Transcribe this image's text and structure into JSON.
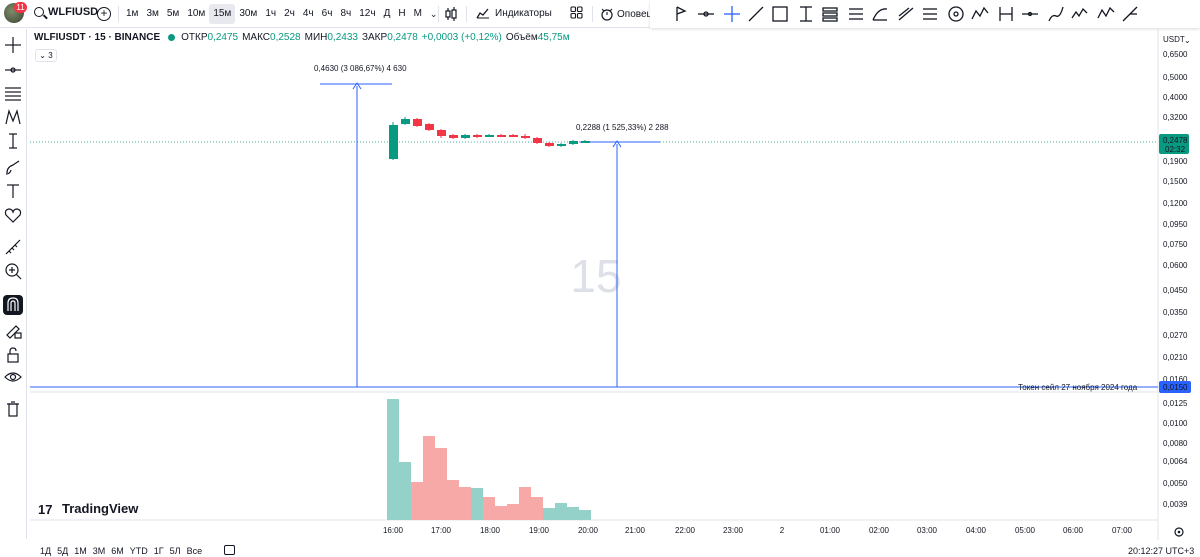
{
  "topbar": {
    "notification_count": "11",
    "symbol": "WLFIUSD",
    "add_symbol": "+",
    "intervals": [
      {
        "label": "1м",
        "active": false
      },
      {
        "label": "3м",
        "active": false
      },
      {
        "label": "5м",
        "active": false
      },
      {
        "label": "10м",
        "active": false
      },
      {
        "label": "15м",
        "active": true
      },
      {
        "label": "30м",
        "active": false
      },
      {
        "label": "1ч",
        "active": false
      },
      {
        "label": "2ч",
        "active": false
      },
      {
        "label": "4ч",
        "active": false
      },
      {
        "label": "6ч",
        "active": false
      },
      {
        "label": "8ч",
        "active": false
      },
      {
        "label": "12ч",
        "active": false
      },
      {
        "label": "Д",
        "active": false
      },
      {
        "label": "Н",
        "active": false
      },
      {
        "label": "М",
        "active": false
      }
    ],
    "intervals_more": "⌄",
    "indicators_label": "Индикаторы",
    "alerts_label": "Оповещ",
    "draw_tools": [
      "fork-icon",
      "horizontal-ray-icon",
      "crosshair-icon",
      "trend-line-icon",
      "rectangle-icon",
      "long-position-icon",
      "date-range-icon",
      "price-range-icon",
      "parallel-channel-icon",
      "regression-icon",
      "brush-icon",
      "fib-icon",
      "circle-icon",
      "path-icon",
      "date-price-range-icon",
      "horizontal-line-icon",
      "brush-icon-2",
      "elliott-wave-icon",
      "forecast-icon"
    ]
  },
  "left_tools": [
    "crosshair-icon",
    "horizontal-line-icon",
    "fib-retracement-icon",
    "pattern-icon",
    "text-cursor-icon",
    "brush-icon",
    "text-icon",
    "heart-icon",
    "ruler-icon",
    "zoom-in-icon",
    "magnet-icon",
    "lock-brush-icon",
    "lock-icon",
    "eye-icon",
    "trash-icon"
  ],
  "legend": {
    "title": "WLFIUSDT · 15 · BINANCE",
    "open_label": "ОТКР",
    "open": "0,2475",
    "high_label": "МАКС",
    "high": "0,2528",
    "low_label": "МИН",
    "low": "0,2433",
    "close_label": "ЗАКР",
    "close": "0,2478",
    "change": "+0,0003 (+0,12%)",
    "volume_label": "Объём",
    "volume": "45,75м",
    "collapse_count": "3"
  },
  "chart": {
    "watermark": "15",
    "currency": "USDT",
    "price_ticks": [
      "0,6500",
      "0,5000",
      "0,4000",
      "0,3200",
      "0,1900",
      "0,1500",
      "0,1200",
      "0,0950",
      "0,0750",
      "0,0600",
      "0,0450",
      "0,0350",
      "0,0270",
      "0,0210",
      "0,0160"
    ],
    "volume_ticks": [
      "0,0125",
      "0,0100",
      "0,0080",
      "0,0064",
      "0,0050",
      "0,0039"
    ],
    "time_ticks": [
      "16:00",
      "17:00",
      "18:00",
      "19:00",
      "20:00",
      "21:00",
      "22:00",
      "23:00",
      "2",
      "01:00",
      "02:00",
      "03:00",
      "04:00",
      "05:00",
      "06:00",
      "07:00"
    ],
    "last_price": "0,2478",
    "countdown": "02:32",
    "hline_price": "0,0150",
    "hline_label": "Токен сейл 27 ноября 2024 года",
    "measure1": "0,4630 (3 086,67%) 4 630",
    "measure2": "0,2288 (1 525,33%) 2 288",
    "logo_text": "TradingView",
    "logo_mark": "17",
    "colors": {
      "up": "#089981",
      "down": "#f23645",
      "vol_up": "#94d1c9",
      "vol_down": "#f7a9a7",
      "line": "#2962ff",
      "label_green": "#4caf50"
    }
  },
  "bottom": {
    "ranges": [
      "1Д",
      "5Д",
      "1М",
      "3М",
      "6М",
      "YTD",
      "1Г",
      "5Л",
      "Все"
    ],
    "clock": "20:12:27 UTC+3"
  }
}
